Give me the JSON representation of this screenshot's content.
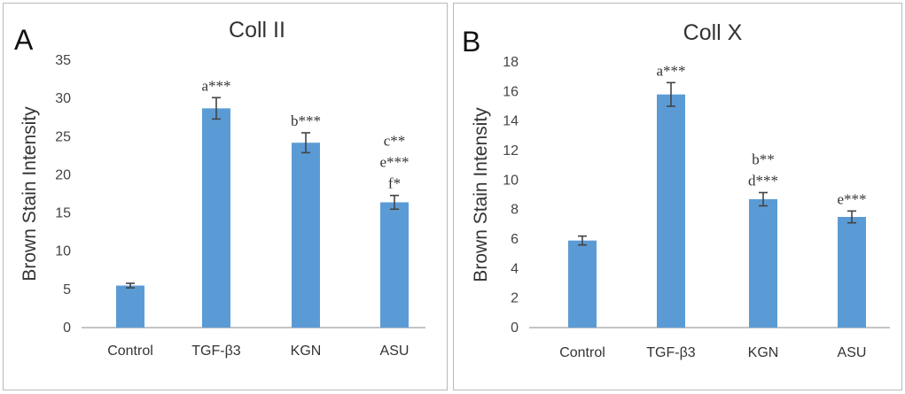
{
  "chart_data": [
    {
      "type": "bar",
      "panel": "A",
      "title": "Coll II",
      "ylabel": "Brown Stain Intensity",
      "xlabel": "",
      "ylim": [
        0,
        35
      ],
      "yticks": [
        0,
        5,
        10,
        15,
        20,
        25,
        30,
        35
      ],
      "grid": false,
      "categories": [
        "Control",
        "TGF-β3",
        "KGN",
        "ASU"
      ],
      "values": [
        5.5,
        28.7,
        24.2,
        16.4
      ],
      "errors": [
        0.3,
        1.4,
        1.3,
        0.9
      ],
      "annotations": [
        [],
        [
          "a***"
        ],
        [
          "b***"
        ],
        [
          "c**",
          "e***",
          "f*"
        ]
      ]
    },
    {
      "type": "bar",
      "panel": "B",
      "title": "Coll X",
      "ylabel": "Brown Stain Intensity",
      "xlabel": "",
      "ylim": [
        0,
        18
      ],
      "yticks": [
        0,
        2,
        4,
        6,
        8,
        10,
        12,
        14,
        16,
        18
      ],
      "grid": false,
      "categories": [
        "Control",
        "TGF-β3",
        "KGN",
        "ASU"
      ],
      "values": [
        5.9,
        15.8,
        8.7,
        7.5
      ],
      "errors": [
        0.3,
        0.8,
        0.45,
        0.4
      ],
      "annotations": [
        [],
        [
          "a***"
        ],
        [
          "b**",
          "d***"
        ],
        [
          "e***"
        ]
      ]
    }
  ]
}
